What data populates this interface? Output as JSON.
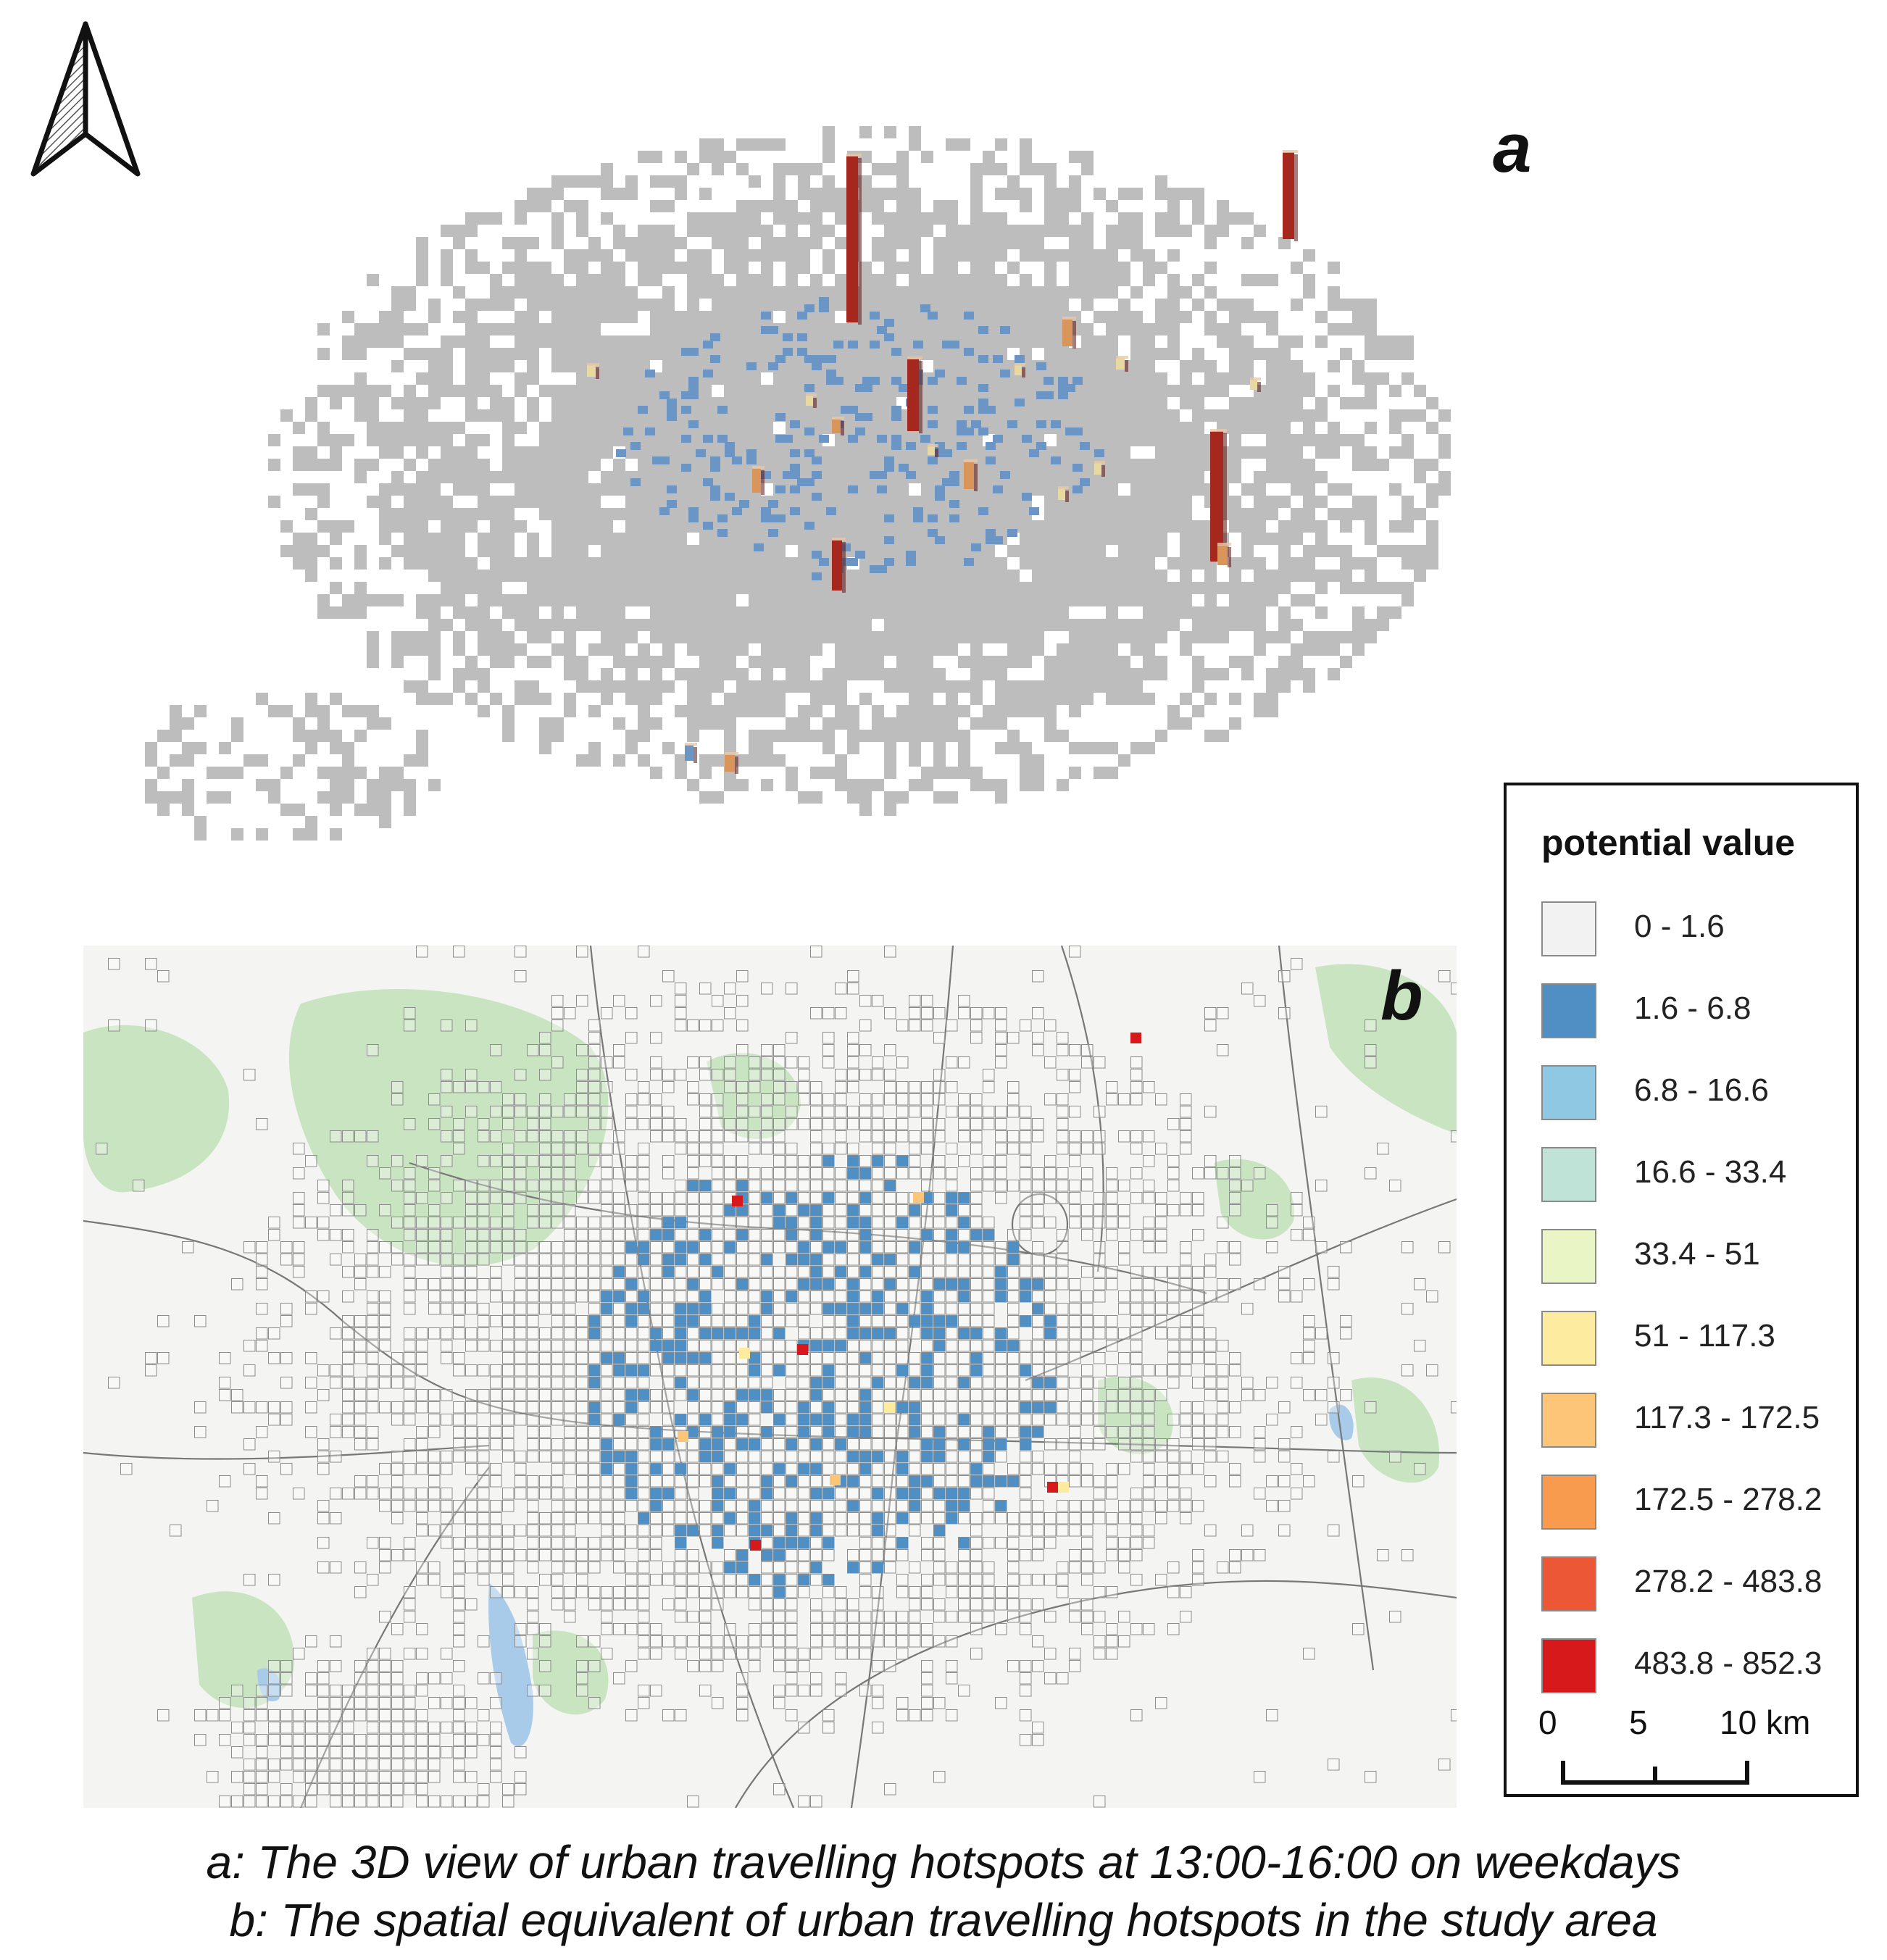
{
  "panel_a": {
    "label": "a"
  },
  "panel_b": {
    "label": "b"
  },
  "legend": {
    "title": "potential value",
    "items": [
      {
        "label": "0 - 1.6",
        "color": "#f2f2f2"
      },
      {
        "label": "1.6 - 6.8",
        "color": "#4f8fc4"
      },
      {
        "label": "6.8 - 16.6",
        "color": "#8fc8e2"
      },
      {
        "label": "16.6 - 33.4",
        "color": "#bfe3d6"
      },
      {
        "label": "33.4 - 51",
        "color": "#e9f5c4"
      },
      {
        "label": "51 - 117.3",
        "color": "#fdeb9f"
      },
      {
        "label": "117.3 - 172.5",
        "color": "#fdc577"
      },
      {
        "label": "172.5 - 278.2",
        "color": "#f99b4e"
      },
      {
        "label": "278.2 - 483.8",
        "color": "#ec5735"
      },
      {
        "label": "483.8 - 852.3",
        "color": "#d7191c"
      }
    ]
  },
  "scalebar": {
    "ticks": [
      "0",
      "5",
      "10 km"
    ]
  },
  "caption": {
    "line1": "a: The 3D view of urban travelling hotspots at 13:00-16:00 on weekdays",
    "line2": "b: The spatial equivalent of urban travelling hotspots in the study area"
  },
  "colors": {
    "grid_gray": "#bdbdbd",
    "bar_red": "#a5271d",
    "bar_orange": "#d9955a",
    "bar_cream": "#e8d9a0",
    "map_green": "#c9e4c1",
    "map_water": "#a9cbea",
    "map_bg": "#f4f4f2",
    "road": "#777777"
  },
  "icons": [
    "north-arrow-icon"
  ]
}
